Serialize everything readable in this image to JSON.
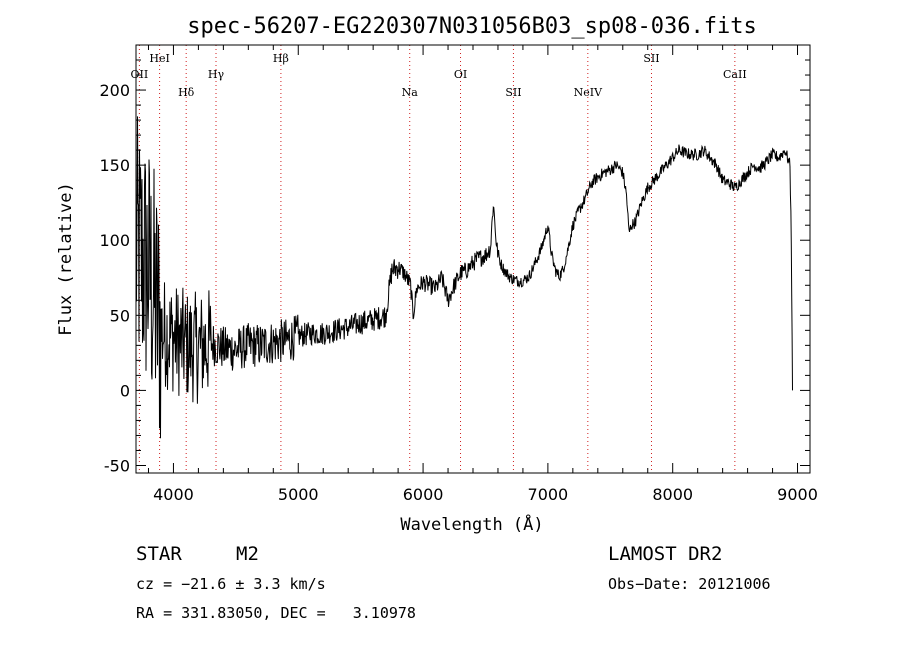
{
  "chart_data": {
    "type": "line",
    "title": "spec-56207-EG220307N031056B03_sp08-036.fits",
    "xlabel": "Wavelength (Å)",
    "ylabel": "Flux (relative)",
    "xlim": [
      3700,
      9100
    ],
    "ylim": [
      -55,
      230
    ],
    "x_ticks": [
      4000,
      5000,
      6000,
      7000,
      8000,
      9000
    ],
    "y_ticks": [
      -50,
      0,
      50,
      100,
      150,
      200
    ],
    "x_tick_labels": [
      "4000",
      "5000",
      "6000",
      "7000",
      "8000",
      "9000"
    ],
    "y_tick_labels": [
      "-50",
      "0",
      "50",
      "100",
      "150",
      "200"
    ],
    "grid": false,
    "reference_lines": [
      {
        "label": "OII",
        "x": 3727,
        "row": 2
      },
      {
        "label": "HeI",
        "x": 3889,
        "row": 1
      },
      {
        "label": "Hδ",
        "x": 4102,
        "row": 3
      },
      {
        "label": "Hγ",
        "x": 4341,
        "row": 2
      },
      {
        "label": "Hβ",
        "x": 4861,
        "row": 1
      },
      {
        "label": "Na",
        "x": 5893,
        "row": 3
      },
      {
        "label": "OI",
        "x": 6300,
        "row": 2
      },
      {
        "label": "SII",
        "x": 6724,
        "row": 3
      },
      {
        "label": "NeIV",
        "x": 7320,
        "row": 3
      },
      {
        "label": "SII",
        "x": 7830,
        "row": 1
      },
      {
        "label": "CaII",
        "x": 8498,
        "row": 2
      }
    ],
    "series": [
      {
        "x": [
          3700,
          3800,
          3900,
          4000,
          4100,
          4200,
          4300,
          4400,
          4500,
          4600,
          4700,
          4800,
          4900,
          5000,
          5100,
          5200,
          5300,
          5400,
          5500,
          5600,
          5700,
          5750,
          5800,
          5850,
          5900,
          5920,
          5950,
          6000,
          6050,
          6100,
          6150,
          6200,
          6250,
          6300,
          6350,
          6400,
          6450,
          6500,
          6540,
          6563,
          6590,
          6620,
          6650,
          6700,
          6750,
          6800,
          6850,
          6900,
          6950,
          7000,
          7030,
          7060,
          7090,
          7120,
          7150,
          7200,
          7250,
          7300,
          7350,
          7400,
          7450,
          7500,
          7550,
          7600,
          7630,
          7650,
          7670,
          7700,
          7750,
          7800,
          7850,
          7900,
          7950,
          8000,
          8050,
          8100,
          8150,
          8200,
          8250,
          8300,
          8350,
          8400,
          8450,
          8500,
          8550,
          8600,
          8650,
          8700,
          8750,
          8800,
          8850,
          8900,
          8940,
          8950,
          8960
        ],
        "y": [
          95,
          80,
          40,
          35,
          30,
          28,
          32,
          28,
          27,
          30,
          30,
          32,
          33,
          36,
          38,
          38,
          40,
          42,
          45,
          47,
          50,
          80,
          82,
          78,
          70,
          50,
          68,
          72,
          70,
          68,
          75,
          60,
          70,
          78,
          80,
          85,
          88,
          90,
          95,
          125,
          95,
          85,
          80,
          75,
          73,
          73,
          76,
          85,
          95,
          110,
          90,
          80,
          76,
          80,
          90,
          110,
          120,
          128,
          138,
          142,
          145,
          147,
          150,
          145,
          130,
          105,
          110,
          112,
          125,
          135,
          140,
          145,
          150,
          155,
          160,
          158,
          157,
          157,
          160,
          155,
          150,
          140,
          138,
          135,
          140,
          145,
          150,
          148,
          152,
          157,
          155,
          160,
          150,
          100,
          0
        ]
      }
    ]
  },
  "info": {
    "object_type": "STAR",
    "subclass": "M2",
    "survey": "LAMOST DR2",
    "cz": "cz = −21.6 ± 3.3 km/s",
    "obs_date": "Obs−Date: 20121006",
    "coords": "RA = 331.83050, DEC =   3.10978"
  }
}
